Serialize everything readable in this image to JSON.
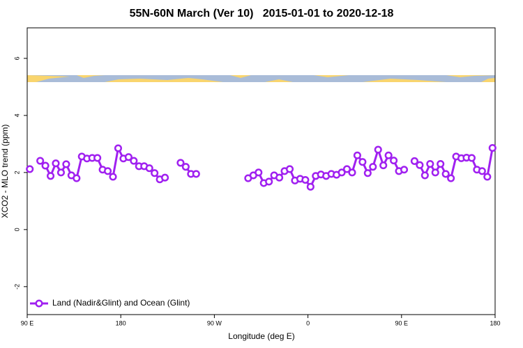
{
  "chart_data": {
    "type": "line",
    "title": "55N-60N March (Ver 10)   2015-01-01 to 2020-12-18",
    "xlabel": "Longitude (deg E)",
    "ylabel": "XCO2 - MLO trend (ppm)",
    "x": [
      92.5,
      97.5,
      102.5,
      107.5,
      112.5,
      117.5,
      122.5,
      127.5,
      132.5,
      137.5,
      142.5,
      147.5,
      152.5,
      157.5,
      162.5,
      167.5,
      172.5,
      177.5,
      182.5,
      187.5,
      192.5,
      197.5,
      202.5,
      207.5,
      212.5,
      217.5,
      222.5,
      227.5,
      232.5,
      237.5,
      242.5,
      247.5,
      252.5,
      257.5,
      262.5,
      267.5,
      272.5,
      277.5,
      282.5,
      287.5,
      292.5,
      297.5,
      302.5,
      307.5,
      312.5,
      317.5,
      322.5,
      327.5,
      332.5,
      337.5,
      342.5,
      347.5,
      352.5,
      357.5,
      362.5,
      367.5,
      372.5,
      377.5,
      382.5,
      387.5,
      392.5,
      397.5,
      402.5,
      407.5,
      412.5,
      417.5,
      422.5,
      427.5,
      432.5,
      437.5,
      442.5,
      447.5,
      452.5,
      457.5,
      462.5,
      467.5,
      472.5,
      477.5,
      482.5,
      487.5,
      492.5,
      497.5,
      502.5,
      507.5,
      512.5,
      517.5,
      522.5,
      527.5,
      532.5,
      537.5
    ],
    "series": [
      {
        "name": "Land (Nadir&Glint) and Ocean (Glint)",
        "color": "#a020f0",
        "values": [
          2.12,
          null,
          2.41,
          2.24,
          1.88,
          2.32,
          2.0,
          2.29,
          1.9,
          1.8,
          2.56,
          2.49,
          2.51,
          2.51,
          2.1,
          2.05,
          1.85,
          2.85,
          2.49,
          2.54,
          2.41,
          2.22,
          2.22,
          2.15,
          1.98,
          1.76,
          1.82,
          null,
          null,
          2.34,
          2.2,
          1.95,
          1.95,
          null,
          null,
          null,
          null,
          null,
          null,
          null,
          null,
          null,
          1.8,
          1.9,
          2.0,
          1.63,
          1.68,
          1.9,
          1.82,
          2.05,
          2.12,
          1.72,
          1.78,
          1.74,
          1.5,
          1.88,
          1.93,
          1.88,
          1.95,
          1.92,
          2.0,
          2.12,
          2.0,
          2.6,
          2.37,
          1.98,
          2.2,
          2.8,
          2.25,
          2.6,
          2.42,
          2.05,
          2.1,
          null,
          2.4,
          2.26,
          1.9,
          2.3,
          2.0,
          2.3,
          1.95,
          1.8,
          2.56,
          2.5,
          2.52,
          2.51,
          2.1,
          2.05,
          1.85,
          2.86
        ]
      }
    ],
    "xlim": [
      90,
      540
    ],
    "xticks": [
      {
        "value": 90,
        "label": "90 E"
      },
      180,
      {
        "value": 270,
        "label": "90 W"
      },
      {
        "value": 360,
        "label": "0"
      },
      {
        "value": 450,
        "label": "90 E"
      },
      {
        "value": 540,
        "label": "180"
      }
    ],
    "ylim": [
      -2.98,
      7.07
    ],
    "yticks": [
      -2,
      0,
      2,
      4,
      6
    ],
    "legend": "bottom-left"
  }
}
